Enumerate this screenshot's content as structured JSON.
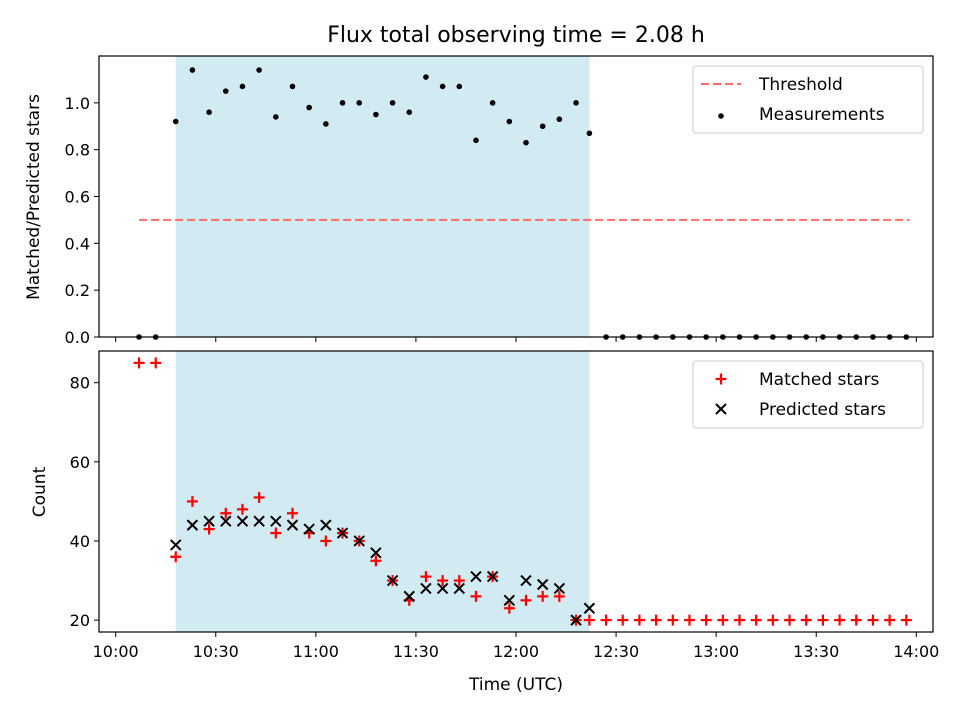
{
  "chart_data": [
    {
      "type": "scatter",
      "title": "Flux total observing time = 2.08 h",
      "xlabel": "",
      "ylabel": "Matched/Predicted stars",
      "ylim": [
        0,
        1.2
      ],
      "yticks": [
        "0.0",
        "0.2",
        "0.4",
        "0.6",
        "0.8",
        "1.0"
      ],
      "xlim": [
        "09:55",
        "14:05"
      ],
      "shaded_interval": [
        "10:18",
        "12:22"
      ],
      "shade_color": "#add8e6",
      "legend_position": "upper right",
      "series": [
        {
          "name": "Threshold",
          "style": "dashed line",
          "color": "#ff6b6b",
          "x": [
            "10:07",
            "13:58"
          ],
          "y": [
            0.5,
            0.5
          ]
        },
        {
          "name": "Measurements",
          "style": "dot",
          "color": "#000000",
          "x": [
            "10:07",
            "10:12",
            "10:18",
            "10:23",
            "10:28",
            "10:33",
            "10:38",
            "10:43",
            "10:48",
            "10:53",
            "10:58",
            "11:03",
            "11:08",
            "11:13",
            "11:18",
            "11:23",
            "11:28",
            "11:33",
            "11:38",
            "11:43",
            "11:48",
            "11:53",
            "11:58",
            "12:03",
            "12:08",
            "12:13",
            "12:18",
            "12:22",
            "12:27",
            "12:32",
            "12:37",
            "12:42",
            "12:47",
            "12:52",
            "12:57",
            "13:02",
            "13:07",
            "13:12",
            "13:17",
            "13:22",
            "13:27",
            "13:32",
            "13:37",
            "13:42",
            "13:47",
            "13:52",
            "13:57"
          ],
          "y": [
            0,
            0,
            0.92,
            1.14,
            0.96,
            1.05,
            1.07,
            1.14,
            0.94,
            1.07,
            0.98,
            0.91,
            1.0,
            1.0,
            0.95,
            1.0,
            0.96,
            1.11,
            1.07,
            1.07,
            0.84,
            1.0,
            0.92,
            0.83,
            0.9,
            0.93,
            1.0,
            0.87,
            0,
            0,
            0,
            0,
            0,
            0,
            0,
            0,
            0,
            0,
            0,
            0,
            0,
            0,
            0,
            0,
            0,
            0,
            0
          ]
        }
      ]
    },
    {
      "type": "scatter",
      "title": "",
      "xlabel": "Time (UTC)",
      "ylabel": "Count",
      "ylim": [
        17,
        88
      ],
      "yticks": [
        "20",
        "40",
        "60",
        "80"
      ],
      "xticks": [
        "10:00",
        "10:30",
        "11:00",
        "11:30",
        "12:00",
        "12:30",
        "13:00",
        "13:30",
        "14:00"
      ],
      "xlim": [
        "09:55",
        "14:05"
      ],
      "shaded_interval": [
        "10:18",
        "12:22"
      ],
      "shade_color": "#add8e6",
      "legend_position": "upper right",
      "series": [
        {
          "name": "Matched stars",
          "style": "plus",
          "color": "#ff0000",
          "x": [
            "10:07",
            "10:12",
            "10:18",
            "10:23",
            "10:28",
            "10:33",
            "10:38",
            "10:43",
            "10:48",
            "10:53",
            "10:58",
            "11:03",
            "11:08",
            "11:13",
            "11:18",
            "11:23",
            "11:28",
            "11:33",
            "11:38",
            "11:43",
            "11:48",
            "11:53",
            "11:58",
            "12:03",
            "12:08",
            "12:13",
            "12:18",
            "12:22",
            "12:27",
            "12:32",
            "12:37",
            "12:42",
            "12:47",
            "12:52",
            "12:57",
            "13:02",
            "13:07",
            "13:12",
            "13:17",
            "13:22",
            "13:27",
            "13:32",
            "13:37",
            "13:42",
            "13:47",
            "13:52",
            "13:57"
          ],
          "y": [
            85,
            85,
            36,
            50,
            43,
            47,
            48,
            51,
            42,
            47,
            42,
            40,
            42,
            40,
            35,
            30,
            25,
            31,
            30,
            30,
            26,
            31,
            23,
            25,
            26,
            26,
            20,
            20,
            20,
            20,
            20,
            20,
            20,
            20,
            20,
            20,
            20,
            20,
            20,
            20,
            20,
            20,
            20,
            20,
            20,
            20,
            20
          ]
        },
        {
          "name": "Predicted stars",
          "style": "x",
          "color": "#000000",
          "x": [
            "10:18",
            "10:23",
            "10:28",
            "10:33",
            "10:38",
            "10:43",
            "10:48",
            "10:53",
            "10:58",
            "11:03",
            "11:08",
            "11:13",
            "11:18",
            "11:23",
            "11:28",
            "11:33",
            "11:38",
            "11:43",
            "11:48",
            "11:53",
            "11:58",
            "12:03",
            "12:08",
            "12:13",
            "12:18",
            "12:22"
          ],
          "y": [
            39,
            44,
            45,
            45,
            45,
            45,
            45,
            44,
            43,
            44,
            42,
            40,
            37,
            30,
            26,
            28,
            28,
            28,
            31,
            31,
            25,
            30,
            29,
            28,
            20,
            23
          ]
        }
      ]
    }
  ]
}
